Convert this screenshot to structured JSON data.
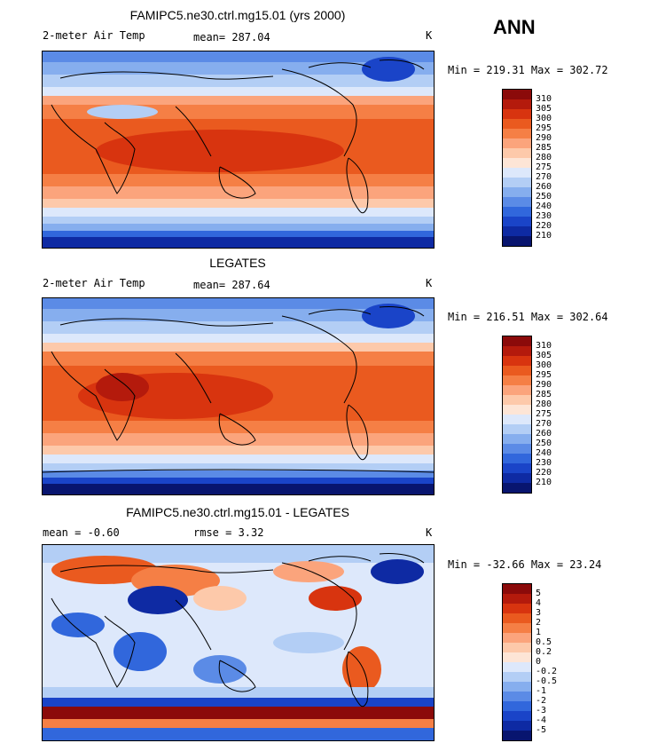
{
  "season": "ANN",
  "panels": [
    {
      "title": "FAMIPC5.ne30.ctrl.mg15.01 (yrs 2000)",
      "left_label": "2-meter Air Temp",
      "mean_label": "mean= 287.04",
      "units": "K",
      "minmax": "Min = 219.31 Max = 302.72",
      "colors": [
        "#8b0a0a",
        "#b41a0c",
        "#d8340f",
        "#ea5a1f",
        "#f57f45",
        "#fba47c",
        "#fdc9aa",
        "#fde5d6",
        "#dde8fb",
        "#b3cef5",
        "#86aeee",
        "#5b8be6",
        "#3167dc",
        "#1a44c8",
        "#0e2aa3",
        "#08156f"
      ],
      "ticks": [
        "310",
        "305",
        "300",
        "295",
        "290",
        "285",
        "280",
        "275",
        "270",
        "260",
        "250",
        "240",
        "230",
        "220",
        "210"
      ]
    },
    {
      "title": "LEGATES",
      "left_label": "2-meter Air Temp",
      "mean_label": "mean= 287.64",
      "units": "K",
      "minmax": "Min = 216.51 Max = 302.64",
      "colors": [
        "#8b0a0a",
        "#b41a0c",
        "#d8340f",
        "#ea5a1f",
        "#f57f45",
        "#fba47c",
        "#fdc9aa",
        "#fde5d6",
        "#dde8fb",
        "#b3cef5",
        "#86aeee",
        "#5b8be6",
        "#3167dc",
        "#1a44c8",
        "#0e2aa3",
        "#08156f"
      ],
      "ticks": [
        "310",
        "305",
        "300",
        "295",
        "290",
        "285",
        "280",
        "275",
        "270",
        "260",
        "250",
        "240",
        "230",
        "220",
        "210"
      ]
    },
    {
      "title": "FAMIPC5.ne30.ctrl.mg15.01 - LEGATES",
      "left_label": "mean =   -0.60",
      "mean_label": "rmse =    3.32",
      "units": "K",
      "minmax": "Min = -32.66 Max =  23.24",
      "colors": [
        "#8b0a0a",
        "#b41a0c",
        "#d8340f",
        "#ea5a1f",
        "#f57f45",
        "#fba47c",
        "#fdc9aa",
        "#fde5d6",
        "#dde8fb",
        "#b3cef5",
        "#86aeee",
        "#5b8be6",
        "#3167dc",
        "#1a44c8",
        "#0e2aa3",
        "#08156f"
      ],
      "ticks": [
        "5",
        "4",
        "3",
        "2",
        "1",
        "0.5",
        "0.2",
        "0",
        "-0.2",
        "-0.5",
        "-1",
        "-2",
        "-3",
        "-4",
        "-5"
      ]
    }
  ]
}
